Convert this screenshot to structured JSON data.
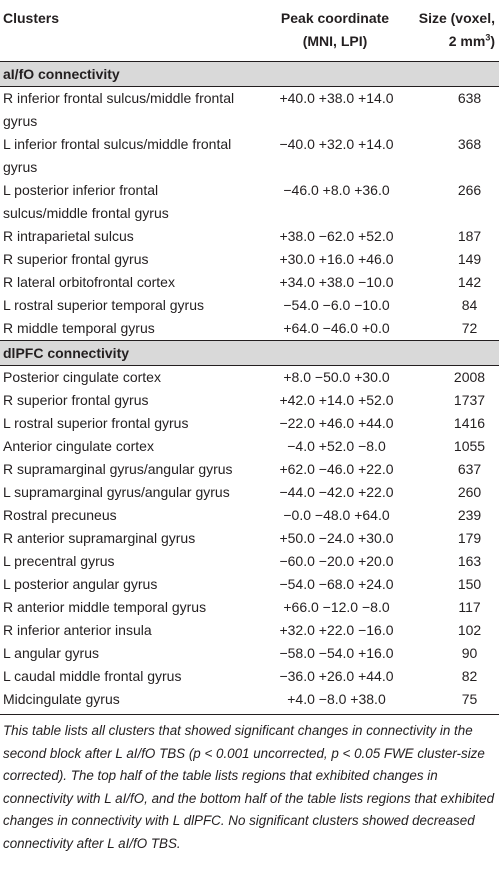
{
  "header": {
    "col1": "Clusters",
    "col2_line1": "Peak coordinate",
    "col2_line2": "(MNI, LPI)",
    "col3_line1": "Size (voxel,",
    "col3_line2": "2 mm",
    "col3_sup": "3",
    "col3_end": ")"
  },
  "sections": [
    {
      "title": "aI/fO connectivity",
      "rows": [
        {
          "name": "R inferior frontal sulcus/middle frontal gyrus",
          "coord": "+40.0 +38.0 +14.0",
          "size": "638"
        },
        {
          "name": "L inferior frontal sulcus/middle frontal gyrus",
          "coord": "−40.0 +32.0 +14.0",
          "size": "368"
        },
        {
          "name": "L posterior inferior frontal sulcus/middle frontal gyrus",
          "coord": "−46.0 +8.0 +36.0",
          "size": "266"
        },
        {
          "name": "R intraparietal sulcus",
          "coord": "+38.0 −62.0 +52.0",
          "size": "187"
        },
        {
          "name": "R superior frontal gyrus",
          "coord": "+30.0 +16.0 +46.0",
          "size": "149"
        },
        {
          "name": "R lateral orbitofrontal cortex",
          "coord": "+34.0 +38.0 −10.0",
          "size": "142"
        },
        {
          "name": "L rostral superior temporal gyrus",
          "coord": "−54.0 −6.0 −10.0",
          "size": "84"
        },
        {
          "name": "R middle temporal gyrus",
          "coord": "+64.0 −46.0 +0.0",
          "size": "72"
        }
      ]
    },
    {
      "title": "dlPFC connectivity",
      "rows": [
        {
          "name": "Posterior cingulate cortex",
          "coord": "+8.0 −50.0 +30.0",
          "size": "2008"
        },
        {
          "name": "R superior frontal gyrus",
          "coord": "+42.0 +14.0 +52.0",
          "size": "1737"
        },
        {
          "name": "L rostral superior frontal gyrus",
          "coord": "−22.0 +46.0 +44.0",
          "size": "1416"
        },
        {
          "name": "Anterior cingulate cortex",
          "coord": "−4.0 +52.0 −8.0",
          "size": "1055"
        },
        {
          "name": "R supramarginal gyrus/angular gyrus",
          "coord": "+62.0 −46.0 +22.0",
          "size": "637"
        },
        {
          "name": "L supramarginal gyrus/angular gyrus",
          "coord": "−44.0 −42.0 +22.0",
          "size": "260"
        },
        {
          "name": "Rostral precuneus",
          "coord": "−0.0 −48.0 +64.0",
          "size": "239"
        },
        {
          "name": "R anterior supramarginal gyrus",
          "coord": "+50.0 −24.0 +30.0",
          "size": "179"
        },
        {
          "name": "L precentral gyrus",
          "coord": "−60.0 −20.0 +20.0",
          "size": "163"
        },
        {
          "name": "L posterior angular gyrus",
          "coord": "−54.0 −68.0 +24.0",
          "size": "150"
        },
        {
          "name": "R anterior middle temporal gyrus",
          "coord": "+66.0 −12.0 −8.0",
          "size": "117"
        },
        {
          "name": "R inferior anterior insula",
          "coord": "+32.0 +22.0 −16.0",
          "size": "102"
        },
        {
          "name": "L angular gyrus",
          "coord": "−58.0 −54.0 +16.0",
          "size": "90"
        },
        {
          "name": "L caudal middle frontal gyrus",
          "coord": "−36.0 +26.0 +44.0",
          "size": "82"
        },
        {
          "name": "Midcingulate gyrus",
          "coord": "+4.0 −8.0 +38.0",
          "size": "75"
        }
      ]
    }
  ],
  "footnote": "This table lists all clusters that showed significant changes in connectivity in the second block after L aI/fO TBS (p < 0.001 uncorrected, p < 0.05 FWE cluster-size corrected). The top half of the table lists regions that exhibited changes in connectivity with L aI/fO, and the bottom half of the table lists regions that exhibited changes in connectivity with L dlPFC. No significant clusters showed decreased connectivity after L aI/fO TBS.",
  "colors": {
    "text": "#231f20",
    "section_bg": "#d9d9d9",
    "background": "#ffffff"
  }
}
